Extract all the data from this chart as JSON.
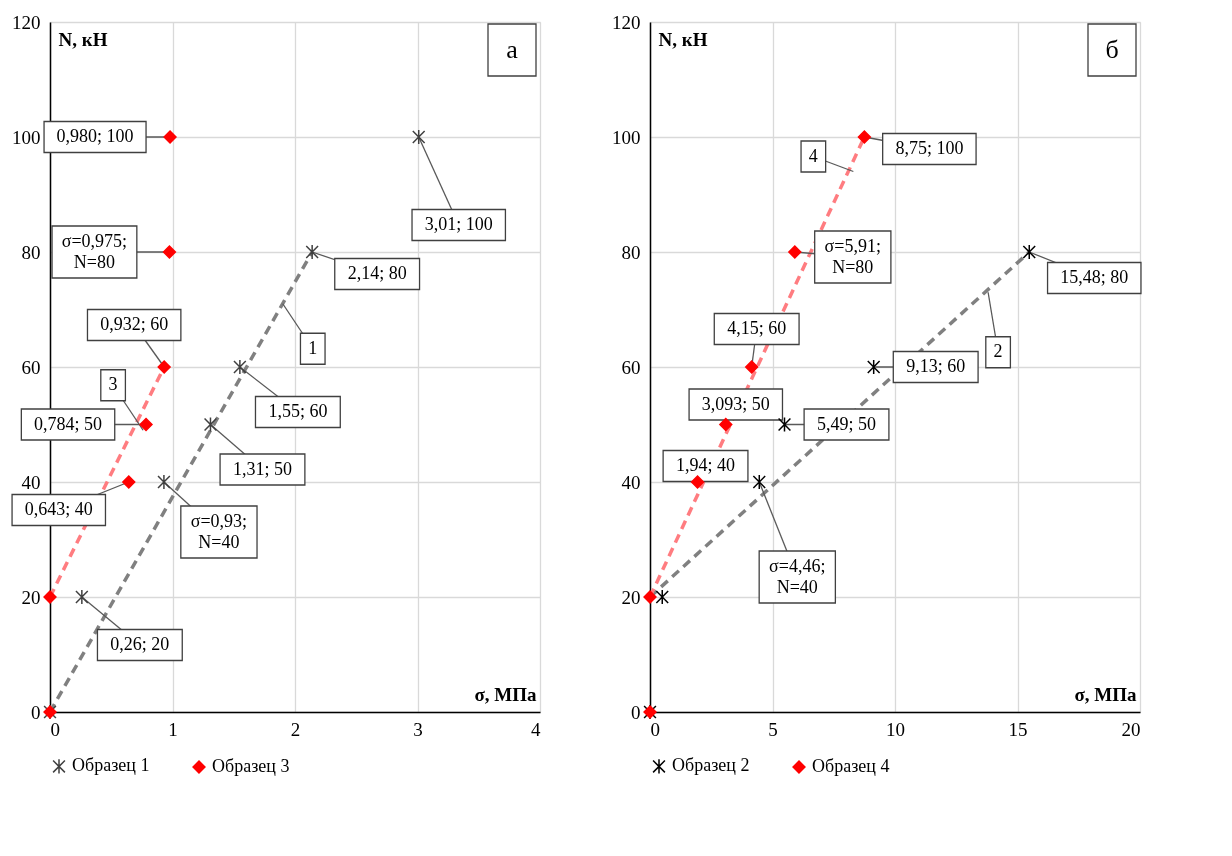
{
  "chart_data": [
    {
      "type": "scatter",
      "xlabel": "σ, МПа",
      "ylabel": "N, кН",
      "xlim": [
        0,
        4
      ],
      "ylim": [
        0,
        120
      ],
      "xticks": [
        0,
        1,
        2,
        3,
        4
      ],
      "yticks": [
        0,
        20,
        40,
        60,
        80,
        100,
        120
      ],
      "grid": true,
      "legend": "bottom",
      "series": [
        {
          "type": "line",
          "color": "#808080",
          "line_style": "dashed",
          "x": [
            0,
            2.14
          ],
          "values": [
            0,
            80
          ]
        },
        {
          "type": "line",
          "color": "#ff7c80",
          "line_style": "dashed",
          "x": [
            0,
            0.932
          ],
          "values": [
            20,
            60
          ]
        },
        {
          "name": "Образец 1",
          "color": "#404040",
          "marker": "cross",
          "x": [
            0,
            0.26,
            0.93,
            1.31,
            1.55,
            2.14,
            3.01
          ],
          "values": [
            0,
            20,
            40,
            50,
            60,
            80,
            100
          ]
        },
        {
          "name": "Образец 3",
          "color": "#ff0000",
          "marker": "diamond",
          "x": [
            0,
            0,
            0.643,
            0.784,
            0.932,
            0.975,
            0.98
          ],
          "values": [
            0,
            20,
            40,
            50,
            60,
            80,
            100
          ]
        }
      ],
      "annotations": [
        "а",
        {
          "text": "0,980; 100",
          "x": 0.98,
          "y": 100
        },
        {
          "text": "σ=0,975;\nN=80",
          "x": 0.975,
          "y": 80
        },
        {
          "text": "0,932; 60",
          "x": 0.932,
          "y": 60
        },
        {
          "text": "0,784; 50",
          "x": 0.784,
          "y": 50
        },
        {
          "text": "0,643; 40",
          "x": 0.643,
          "y": 40
        },
        {
          "text": "σ=0,93;\nN=40",
          "x": 0.93,
          "y": 40
        },
        {
          "text": "0,26; 20",
          "x": 0.26,
          "y": 20
        },
        {
          "text": "1,31; 50",
          "x": 1.31,
          "y": 50
        },
        {
          "text": "1,55; 60",
          "x": 1.55,
          "y": 60
        },
        {
          "text": "2,14; 80",
          "x": 2.14,
          "y": 80
        },
        {
          "text": "3,01; 100",
          "x": 3.01,
          "y": 100
        },
        {
          "text": "1",
          "x": 1.9,
          "y": 71
        },
        {
          "text": "3",
          "x": 0.76,
          "y": 49
        }
      ]
    },
    {
      "type": "scatter",
      "xlabel": "σ, МПа",
      "ylabel": "N, кН",
      "xlim": [
        0,
        20
      ],
      "ylim": [
        0,
        120
      ],
      "xticks": [
        0,
        5,
        10,
        15,
        20
      ],
      "yticks": [
        0,
        20,
        40,
        60,
        80,
        100,
        120
      ],
      "grid": true,
      "legend": "bottom",
      "series": [
        {
          "type": "line",
          "color": "#808080",
          "line_style": "dashed",
          "x": [
            0,
            15.48
          ],
          "values": [
            20,
            80
          ]
        },
        {
          "type": "line",
          "color": "#ff7c80",
          "line_style": "dashed",
          "x": [
            0,
            8.75
          ],
          "values": [
            20,
            100
          ]
        },
        {
          "name": "Образец 2",
          "color": "#000000",
          "marker": "cross",
          "x": [
            0,
            0.5,
            4.46,
            5.49,
            9.13,
            15.48
          ],
          "values": [
            0,
            20,
            40,
            50,
            60,
            80
          ]
        },
        {
          "name": "Образец 4",
          "color": "#ff0000",
          "marker": "diamond",
          "x": [
            0,
            0,
            1.94,
            3.093,
            4.15,
            5.91,
            8.75
          ],
          "values": [
            0,
            20,
            40,
            50,
            60,
            80,
            100
          ]
        }
      ],
      "annotations": [
        "б",
        {
          "text": "8,75; 100",
          "x": 8.75,
          "y": 100
        },
        {
          "text": "σ=5,91;\nN=80",
          "x": 5.91,
          "y": 80
        },
        {
          "text": "4,15; 60",
          "x": 4.15,
          "y": 60
        },
        {
          "text": "3,093; 50",
          "x": 3.093,
          "y": 50
        },
        {
          "text": "1,94; 40",
          "x": 1.94,
          "y": 40
        },
        {
          "text": "σ=4,46;\nN=40",
          "x": 4.46,
          "y": 40
        },
        {
          "text": "5,49; 50",
          "x": 5.49,
          "y": 50
        },
        {
          "text": "9,13; 60",
          "x": 9.13,
          "y": 60
        },
        {
          "text": "15,48; 80",
          "x": 15.48,
          "y": 80
        },
        {
          "text": "2",
          "x": 13.8,
          "y": 73
        },
        {
          "text": "4",
          "x": 8.3,
          "y": 94
        }
      ]
    }
  ]
}
